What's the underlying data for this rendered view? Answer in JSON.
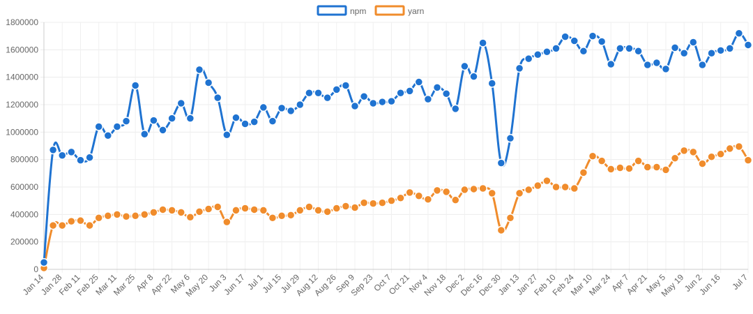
{
  "chart_data": {
    "type": "line",
    "title": "",
    "xlabel": "",
    "ylabel": "",
    "ylim": [
      0,
      1800000
    ],
    "y_ticks": [
      0,
      200000,
      400000,
      600000,
      800000,
      1000000,
      1200000,
      1400000,
      1600000,
      1800000
    ],
    "grid": true,
    "legend_position": "top-center",
    "x_tick_labels": [
      "Jan 14",
      "Jan 28",
      "Feb 11",
      "Feb 25",
      "Mar 11",
      "Mar 25",
      "Apr 8",
      "Apr 22",
      "May 6",
      "May 20",
      "Jun 3",
      "Jun 17",
      "Jul 1",
      "Jul 15",
      "Jul 29",
      "Aug 12",
      "Aug 26",
      "Sep 9",
      "Sep 23",
      "Oct 7",
      "Oct 21",
      "Nov 4",
      "Nov 18",
      "Dec 2",
      "Dec 16",
      "Dec 30",
      "Jan 13",
      "Jan 27",
      "Feb 10",
      "Feb 24",
      "Mar 10",
      "Mar 24",
      "Apr 7",
      "Apr 21",
      "May 5",
      "May 19",
      "Jun 2",
      "Jun 16",
      "Jul 7"
    ],
    "series": [
      {
        "name": "npm",
        "color": "#1f73d1",
        "values": [
          50000,
          870000,
          830000,
          855000,
          795000,
          815000,
          1040000,
          975000,
          1040000,
          1080000,
          1340000,
          985000,
          1085000,
          1015000,
          1100000,
          1210000,
          1100000,
          1455000,
          1360000,
          1250000,
          980000,
          1105000,
          1060000,
          1075000,
          1180000,
          1080000,
          1175000,
          1155000,
          1200000,
          1285000,
          1285000,
          1250000,
          1310000,
          1340000,
          1190000,
          1260000,
          1210000,
          1220000,
          1225000,
          1285000,
          1300000,
          1365000,
          1240000,
          1325000,
          1280000,
          1170000,
          1480000,
          1405000,
          1650000,
          1355000,
          775000,
          955000,
          1465000,
          1535000,
          1565000,
          1585000,
          1610000,
          1695000,
          1665000,
          1590000,
          1700000,
          1660000,
          1495000,
          1610000,
          1610000,
          1590000,
          1490000,
          1505000,
          1460000,
          1615000,
          1575000,
          1655000,
          1490000,
          1575000,
          1595000,
          1610000,
          1720000,
          1635000
        ]
      },
      {
        "name": "yarn",
        "color": "#f08c2c",
        "values": [
          10000,
          320000,
          320000,
          350000,
          355000,
          320000,
          375000,
          390000,
          400000,
          385000,
          390000,
          400000,
          415000,
          435000,
          430000,
          415000,
          380000,
          420000,
          440000,
          455000,
          345000,
          430000,
          445000,
          435000,
          430000,
          375000,
          390000,
          395000,
          430000,
          455000,
          430000,
          420000,
          445000,
          460000,
          450000,
          485000,
          480000,
          485000,
          500000,
          520000,
          560000,
          535000,
          510000,
          575000,
          565000,
          505000,
          580000,
          585000,
          590000,
          555000,
          285000,
          375000,
          555000,
          580000,
          610000,
          645000,
          600000,
          600000,
          590000,
          705000,
          825000,
          790000,
          730000,
          740000,
          735000,
          790000,
          745000,
          745000,
          725000,
          810000,
          865000,
          855000,
          770000,
          820000,
          840000,
          880000,
          895000,
          795000
        ]
      }
    ]
  }
}
